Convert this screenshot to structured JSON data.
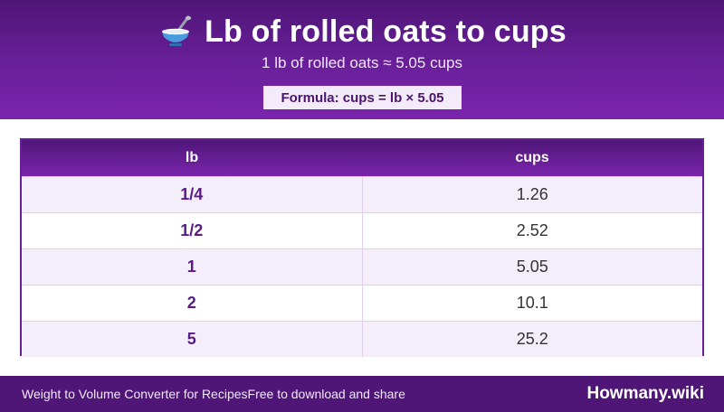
{
  "header": {
    "icon": "bowl-icon",
    "title": "Lb of rolled oats to cups",
    "subtitle": "1 lb of rolled oats ≈ 5.05 cups",
    "formula": "Formula: cups = lb × 5.05"
  },
  "table": {
    "columns": [
      "lb",
      "cups"
    ],
    "rows": [
      [
        "1/4",
        "1.26"
      ],
      [
        "1/2",
        "2.52"
      ],
      [
        "1",
        "5.05"
      ],
      [
        "2",
        "10.1"
      ],
      [
        "5",
        "25.2"
      ]
    ]
  },
  "footer": {
    "left_text": "Weight to Volume Converter for RecipesFree to download and share",
    "brand": "Howmany.wiki"
  },
  "colors": {
    "primary": "#6a1f9a",
    "dark": "#4f1677",
    "row_alt": "#f4eefa"
  }
}
